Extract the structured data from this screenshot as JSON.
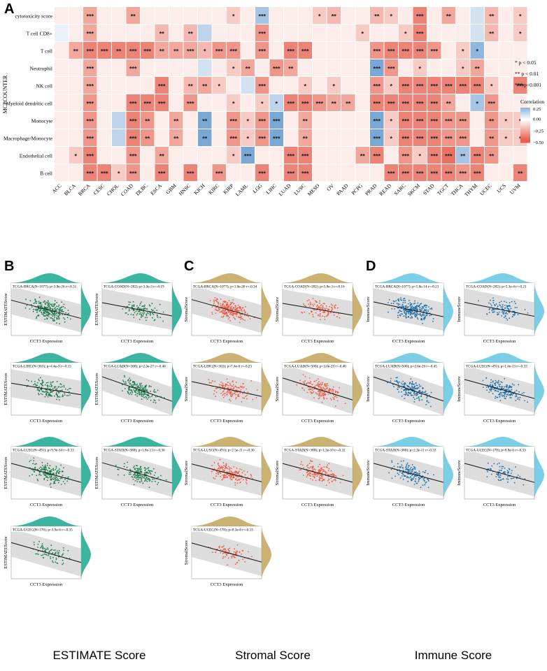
{
  "panels": {
    "A": "A",
    "B": "B",
    "C": "C",
    "D": "D"
  },
  "column_captions": {
    "estimate": "ESTIMATE Score",
    "stromal": "Stromal Score",
    "immune": "Immune Score"
  },
  "colors": {
    "pos_strong": "#7aa8d6",
    "neg_strong": "#e8604f",
    "neutral": "#ffffff",
    "estimate": "#1aa88f",
    "estimate_pts": "#1a7a4a",
    "stromal": "#c2a55a",
    "stromal_pts": "#ee5a44",
    "immune": "#63c6e0",
    "immune_pts": "#1a6ea8"
  },
  "chart_data": [
    {
      "type": "heatmap",
      "title": "",
      "ylabel": "MCPCOUNTER",
      "rows": [
        "cytotoxicity score",
        "T cell CD8+",
        "T cell",
        "Neutrophil",
        "NK cell",
        "Myeloid dendritic cell",
        "Monocyte",
        "Macrophage/Monocyte",
        "Endothelial cell",
        "B cell"
      ],
      "columns": [
        "ACC",
        "BLCA",
        "BRCA",
        "CESC",
        "CHOL",
        "COAD",
        "DLBC",
        "ESCA",
        "GBM",
        "HNSC",
        "KICH",
        "KIRC",
        "KIRP",
        "LAML",
        "LGG",
        "LIHC",
        "LUAD",
        "LUSC",
        "MESO",
        "OV",
        "PAAD",
        "PCPG",
        "PRAD",
        "READ",
        "SARC",
        "SKCM",
        "STAD",
        "TGCT",
        "THCA",
        "THYM",
        "UCEC",
        "UCS",
        "UVM"
      ],
      "values": [
        [
          -0.05,
          -0.05,
          -0.25,
          -0.05,
          -0.05,
          -0.25,
          -0.05,
          -0.05,
          -0.05,
          -0.05,
          -0.05,
          -0.05,
          -0.15,
          -0.05,
          0.2,
          -0.05,
          -0.05,
          -0.05,
          -0.15,
          -0.2,
          -0.05,
          -0.05,
          -0.2,
          -0.15,
          -0.05,
          -0.35,
          -0.05,
          -0.25,
          -0.05,
          0.1,
          -0.2,
          -0.05,
          -0.15
        ],
        [
          0.05,
          -0.05,
          -0.25,
          -0.05,
          -0.05,
          -0.05,
          -0.05,
          -0.2,
          -0.05,
          -0.2,
          0.15,
          -0.05,
          -0.05,
          -0.05,
          -0.3,
          -0.05,
          -0.05,
          -0.05,
          -0.05,
          -0.05,
          -0.05,
          -0.15,
          -0.05,
          -0.05,
          -0.15,
          -0.35,
          -0.05,
          -0.05,
          -0.05,
          0.1,
          -0.2,
          -0.05,
          -0.15
        ],
        [
          -0.05,
          -0.25,
          -0.35,
          -0.35,
          -0.35,
          -0.35,
          -0.35,
          -0.25,
          -0.25,
          -0.25,
          -0.2,
          -0.3,
          -0.3,
          -0.05,
          -0.3,
          -0.05,
          -0.35,
          -0.35,
          -0.05,
          -0.05,
          -0.05,
          -0.05,
          -0.3,
          -0.35,
          -0.35,
          -0.35,
          -0.3,
          -0.05,
          -0.15,
          0.25,
          -0.05,
          -0.05,
          -0.05
        ],
        [
          -0.05,
          -0.05,
          -0.25,
          -0.05,
          -0.05,
          -0.25,
          -0.05,
          -0.05,
          -0.05,
          -0.05,
          0.1,
          -0.05,
          -0.15,
          -0.25,
          -0.05,
          -0.3,
          -0.25,
          -0.05,
          -0.05,
          -0.05,
          -0.05,
          -0.05,
          0.3,
          -0.3,
          -0.05,
          -0.15,
          -0.05,
          -0.05,
          -0.15,
          -0.25,
          -0.05,
          -0.05,
          -0.05
        ],
        [
          -0.05,
          -0.05,
          -0.25,
          -0.05,
          -0.05,
          -0.05,
          -0.05,
          -0.35,
          -0.05,
          -0.2,
          -0.25,
          -0.15,
          -0.05,
          0.1,
          -0.3,
          -0.05,
          -0.05,
          -0.15,
          -0.05,
          -0.15,
          -0.05,
          -0.05,
          -0.3,
          -0.15,
          -0.35,
          -0.35,
          -0.35,
          -0.35,
          -0.35,
          -0.35,
          -0.15,
          -0.05,
          -0.35
        ],
        [
          -0.05,
          -0.05,
          -0.3,
          -0.05,
          -0.05,
          -0.35,
          -0.35,
          -0.35,
          -0.05,
          -0.3,
          -0.05,
          -0.05,
          -0.15,
          -0.05,
          -0.15,
          0.15,
          -0.35,
          -0.35,
          -0.3,
          -0.25,
          -0.25,
          -0.05,
          -0.35,
          -0.35,
          -0.35,
          -0.35,
          -0.35,
          -0.25,
          -0.05,
          0.2,
          -0.3,
          -0.05,
          -0.05
        ],
        [
          -0.05,
          -0.05,
          -0.3,
          -0.05,
          0.15,
          -0.35,
          -0.3,
          -0.05,
          -0.25,
          -0.05,
          0.35,
          -0.05,
          -0.3,
          -0.15,
          -0.3,
          0.3,
          -0.05,
          -0.25,
          -0.05,
          -0.05,
          -0.05,
          -0.05,
          0.3,
          -0.15,
          -0.35,
          -0.35,
          -0.35,
          -0.3,
          -0.3,
          -0.05,
          -0.3,
          -0.15,
          -0.15
        ],
        [
          -0.05,
          -0.05,
          -0.3,
          -0.05,
          0.15,
          -0.35,
          -0.3,
          -0.05,
          -0.25,
          -0.05,
          0.35,
          -0.05,
          -0.3,
          -0.15,
          -0.3,
          0.3,
          -0.05,
          -0.25,
          -0.05,
          -0.05,
          -0.05,
          -0.05,
          0.3,
          -0.15,
          -0.35,
          -0.35,
          -0.35,
          -0.3,
          -0.3,
          -0.05,
          -0.3,
          -0.15,
          -0.15
        ],
        [
          -0.05,
          -0.15,
          -0.35,
          -0.05,
          -0.05,
          -0.3,
          -0.05,
          -0.25,
          -0.05,
          -0.05,
          -0.05,
          -0.05,
          -0.15,
          0.3,
          -0.05,
          -0.05,
          -0.35,
          -0.35,
          -0.05,
          -0.05,
          -0.05,
          -0.25,
          -0.35,
          -0.05,
          -0.3,
          -0.15,
          -0.35,
          -0.4,
          0.2,
          -0.35,
          -0.3,
          -0.05,
          -0.05
        ],
        [
          -0.05,
          -0.05,
          -0.35,
          -0.35,
          -0.15,
          -0.3,
          -0.05,
          -0.35,
          -0.05,
          -0.35,
          -0.05,
          -0.3,
          -0.05,
          -0.05,
          -0.35,
          -0.05,
          -0.35,
          -0.35,
          -0.05,
          -0.05,
          -0.05,
          -0.05,
          -0.05,
          -0.35,
          -0.35,
          -0.35,
          -0.35,
          -0.35,
          -0.3,
          -0.35,
          -0.05,
          -0.05,
          -0.35
        ]
      ],
      "significance": [
        [
          "",
          "",
          "***",
          "",
          "",
          "**",
          "",
          "",
          "",
          "",
          "",
          "",
          "*",
          "",
          "***",
          "",
          "",
          "",
          "*",
          "**",
          "",
          "",
          "**",
          "*",
          "",
          "***",
          "",
          "**",
          "",
          "",
          "**",
          "",
          "*"
        ],
        [
          "",
          "",
          "***",
          "",
          "",
          "",
          "",
          "**",
          "",
          "**",
          "",
          "",
          "",
          "",
          "***",
          "",
          "",
          "",
          "",
          "",
          "",
          "*",
          "",
          "",
          "*",
          "***",
          "",
          "",
          "",
          "",
          "**",
          "",
          "*"
        ],
        [
          "",
          "**",
          "***",
          "***",
          "**",
          "***",
          "***",
          "**",
          "**",
          "***",
          "*",
          "***",
          "***",
          "",
          "***",
          "",
          "***",
          "***",
          "",
          "",
          "",
          "",
          "***",
          "***",
          "***",
          "***",
          "***",
          "",
          "*",
          "*",
          "",
          "",
          ""
        ],
        [
          "",
          "",
          "***",
          "",
          "",
          "***",
          "",
          "",
          "",
          "",
          "",
          "",
          "*",
          "**",
          "",
          "***",
          "**",
          "",
          "",
          "",
          "",
          "",
          "***",
          "***",
          "",
          "*",
          "",
          "",
          "*",
          "**",
          "",
          "",
          ""
        ],
        [
          "",
          "",
          "***",
          "",
          "",
          "",
          "",
          "***",
          "",
          "**",
          "**",
          "*",
          "",
          "",
          "***",
          "",
          "",
          "*",
          "",
          "*",
          "",
          "",
          "***",
          "*",
          "***",
          "***",
          "***",
          "***",
          "***",
          "***",
          "*",
          "",
          "***"
        ],
        [
          "",
          "",
          "***",
          "",
          "",
          "***",
          "***",
          "***",
          "",
          "***",
          "",
          "",
          "*",
          "",
          "*",
          "*",
          "***",
          "***",
          "***",
          "**",
          "**",
          "",
          "***",
          "***",
          "***",
          "***",
          "***",
          "**",
          "",
          "*",
          "***",
          "",
          ""
        ],
        [
          "",
          "",
          "***",
          "",
          "",
          "***",
          "**",
          "",
          "**",
          "",
          "**",
          "",
          "***",
          "*",
          "***",
          "***",
          "",
          "**",
          "",
          "",
          "",
          "",
          "***",
          "*",
          "***",
          "***",
          "***",
          "***",
          "***",
          "",
          "**",
          "*",
          "*"
        ],
        [
          "",
          "",
          "***",
          "",
          "",
          "***",
          "**",
          "",
          "**",
          "",
          "**",
          "",
          "***",
          "*",
          "***",
          "***",
          "",
          "**",
          "",
          "",
          "",
          "",
          "***",
          "*",
          "***",
          "***",
          "***",
          "***",
          "***",
          "",
          "**",
          "*",
          "*"
        ],
        [
          "",
          "*",
          "***",
          "",
          "",
          "***",
          "",
          "**",
          "",
          "",
          "",
          "",
          "*",
          "***",
          "",
          "",
          "***",
          "***",
          "",
          "",
          "",
          "**",
          "***",
          "",
          "***",
          "*",
          "***",
          "***",
          "**",
          "***",
          "**",
          "",
          ""
        ],
        [
          "",
          "",
          "***",
          "***",
          "*",
          "***",
          "",
          "***",
          "",
          "***",
          "",
          "***",
          "",
          "",
          "***",
          "",
          "***",
          "***",
          "",
          "",
          "",
          "",
          "",
          "***",
          "***",
          "***",
          "***",
          "***",
          "***",
          "***",
          "",
          "",
          "**"
        ]
      ],
      "legend": {
        "title": "Correlation",
        "ticks": [
          "0.25",
          "0.00",
          "−0.25",
          "−0.50"
        ],
        "range": [
          -0.5,
          0.25
        ]
      },
      "significance_key": [
        "* p < 0.05",
        "** p < 0.01",
        "*** p<0.001"
      ]
    },
    {
      "type": "scatter",
      "group": "B",
      "score": "estimate",
      "xlabel": "CCT3 Expression",
      "ylabel": "ESTIMATEScore",
      "panels": [
        {
          "label": "TCGA-BRCA(N=1077); p=3.9e-26 r=-0.31",
          "n": 260,
          "slope": -0.31
        },
        {
          "label": "TCGA-COAD(N=282); p=3.3e-3 r=-0.19",
          "n": 110,
          "slope": -0.19
        },
        {
          "label": "TCGA-LIHC(N=363); p=4.4e-3 r=-0.15",
          "n": 150,
          "slope": -0.15
        },
        {
          "label": "TCGA-LUAD(N=500); p=2.3e-27 r=-0.46",
          "n": 180,
          "slope": -0.46
        },
        {
          "label": "TCGA-LUSC(N=491); p=9.9e-14   r=-0.33",
          "n": 180,
          "slope": -0.33
        },
        {
          "label": "TCGA-STAD(N=388); p=1.8e-13 r=-0.36",
          "n": 160,
          "slope": -0.36
        },
        {
          "label": "TCGA-UCEC(N=178); p=1.9e-6 r=-0.35",
          "n": 80,
          "slope": -0.35
        }
      ]
    },
    {
      "type": "scatter",
      "group": "C",
      "score": "stromal",
      "xlabel": "CCT3 Expression",
      "ylabel": "StromalScore",
      "panels": [
        {
          "label": "TCGA-BRCA(N=1077); p=1.0e-30 r=-0.34",
          "n": 260,
          "slope": -0.34
        },
        {
          "label": "TCGA-COAD(N=282); p=5.8e-3 r=-0.16",
          "n": 110,
          "slope": -0.16
        },
        {
          "label": "TCGA-LIHC(N=363); p=7.4e-6 r=-0.23",
          "n": 150,
          "slope": -0.23
        },
        {
          "label": "TCGA-LUAD(N=500); p=3.0e-20 r=-0.40",
          "n": 180,
          "slope": -0.4
        },
        {
          "label": "TCGA-LUSC(N=491); p=2.5e-11 r=-0.30",
          "n": 180,
          "slope": -0.3
        },
        {
          "label": "TCGA-STAD(N=388); p=1.3e-10 r=-0.32",
          "n": 160,
          "slope": -0.32
        },
        {
          "label": "TCGA-UCEC(N=178); p=8.3e-6 r=-0.33",
          "n": 80,
          "slope": -0.33
        }
      ]
    },
    {
      "type": "scatter",
      "group": "D",
      "score": "immune",
      "xlabel": "CCT3 Expression",
      "ylabel": "ImmuneScore",
      "panels": [
        {
          "label": "TCGA-BRCA(N=1077); p=5.8e-14 r=-0.23",
          "n": 260,
          "slope": -0.23
        },
        {
          "label": "TCGA-COAD(N=282); p=5.3e-4 r=-0.21",
          "n": 110,
          "slope": -0.21
        },
        {
          "label": "TCGA-LUAD(N=500); p=2.6e-26 r=-0.45",
          "n": 180,
          "slope": -0.45
        },
        {
          "label": "TCGA-LUSC(N=491); p=1.4e-13 r=-0.33",
          "n": 180,
          "slope": -0.33
        },
        {
          "label": "TCGA-STAD(N=388); p=2.3e-11 r=-0.33",
          "n": 160,
          "slope": -0.33
        },
        {
          "label": "TCGA-UCEC(N=178); p=8.8e-6 r=-0.33",
          "n": 80,
          "slope": -0.33
        }
      ]
    }
  ]
}
